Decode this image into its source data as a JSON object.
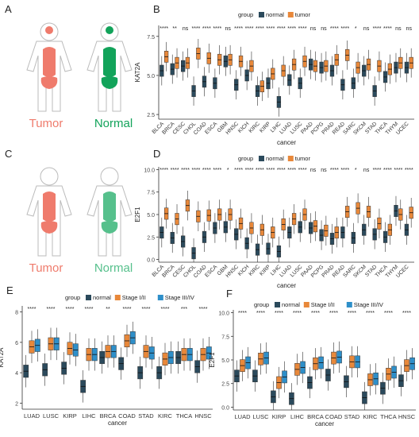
{
  "panels": {
    "A": {
      "letter": "A",
      "tumor_label": "Tumor",
      "normal_label": "Normal"
    },
    "C": {
      "letter": "C",
      "tumor_label": "Tumor",
      "normal_label": "Normal"
    }
  },
  "colors": {
    "normal": "#2b4a5c",
    "tumor": "#e8883a",
    "stage1": "#e8883a",
    "stage3": "#2e8fc9",
    "tumor_body": "#ef7b6c",
    "normal_body_A": "#12a35a",
    "normal_body_C": "#56c08c"
  },
  "chart_data": [
    {
      "panel": "B",
      "type": "box",
      "ylabel": "KAT2A",
      "xlabel": "cancer",
      "legend_title": "group",
      "legend": [
        "normal",
        "tumor"
      ],
      "ylim": [
        2.2,
        8.2
      ],
      "yticks": [
        2.5,
        5.0,
        7.5
      ],
      "categories": [
        "BLCA",
        "BRCA",
        "CESC",
        "CHOL",
        "COAD",
        "ESCA",
        "GBM",
        "HNSC",
        "KICH",
        "KIRC",
        "KIRP",
        "LIHC",
        "LUAD",
        "LUSC",
        "PAAD",
        "PCPG",
        "PRAD",
        "READ",
        "SARC",
        "SKCM",
        "STAD",
        "THCA",
        "THYM",
        "UCEC"
      ],
      "significance": [
        "****",
        "**",
        "ns",
        "****",
        "****",
        "****",
        "ns",
        "****",
        "****",
        "****",
        "****",
        "****",
        "****",
        "****",
        "ns",
        "ns",
        "****",
        "****",
        "*",
        "ns",
        "****",
        "****",
        "ns",
        "ns"
      ],
      "series": [
        {
          "name": "normal",
          "medians": [
            5.3,
            5.4,
            5.6,
            4.0,
            4.6,
            4.5,
            5.9,
            4.4,
            5.0,
            4.0,
            4.5,
            3.3,
            4.7,
            4.5,
            5.7,
            5.5,
            5.3,
            4.4,
            4.5,
            5.3,
            4.0,
            4.9,
            5.5,
            5.5
          ]
        },
        {
          "name": "tumor",
          "medians": [
            6.2,
            5.8,
            5.8,
            6.4,
            6.1,
            6.0,
            6.0,
            5.9,
            5.6,
            4.3,
            5.1,
            5.3,
            5.7,
            5.9,
            5.6,
            5.6,
            6.0,
            6.3,
            5.5,
            5.7,
            5.6,
            5.4,
            5.8,
            5.8
          ]
        }
      ]
    },
    {
      "panel": "D",
      "type": "box",
      "ylabel": "E2F1",
      "xlabel": "cancer",
      "legend_title": "group",
      "legend": [
        "normal",
        "tumor"
      ],
      "ylim": [
        -0.3,
        10.3
      ],
      "yticks": [
        0.0,
        2.5,
        5.0,
        7.5,
        10.0
      ],
      "categories": [
        "BLCA",
        "BRCA",
        "CESC",
        "CHOL",
        "COAD",
        "ESCA",
        "GBM",
        "HNSC",
        "KICH",
        "KIRC",
        "KIRP",
        "LIHC",
        "LUAD",
        "LUSC",
        "PAAD",
        "PCPG",
        "PRAD",
        "READ",
        "SARC",
        "SKCM",
        "STAD",
        "THCA",
        "THYM",
        "UCEC"
      ],
      "significance": [
        "****",
        "****",
        "****",
        "****",
        "****",
        "****",
        "*",
        "****",
        "****",
        "****",
        "****",
        "****",
        "****",
        "****",
        "ns",
        "ns",
        "****",
        "****",
        "*",
        "ns",
        "****",
        "****",
        "****",
        "****"
      ],
      "series": [
        {
          "name": "normal",
          "medians": [
            3.0,
            2.4,
            2.0,
            0.7,
            2.5,
            3.5,
            3.6,
            2.8,
            1.8,
            1.1,
            1.2,
            0.9,
            3.0,
            3.6,
            3.5,
            2.7,
            2.3,
            3.0,
            2.4,
            3.3,
            2.8,
            2.5,
            5.4,
            3.3
          ]
        },
        {
          "name": "tumor",
          "medians": [
            5.1,
            4.5,
            6.0,
            4.8,
            4.9,
            5.0,
            5.0,
            4.0,
            3.5,
            3.3,
            3.0,
            3.9,
            4.5,
            5.0,
            3.7,
            3.2,
            3.0,
            5.3,
            5.7,
            5.3,
            4.0,
            3.3,
            5.0,
            5.2
          ]
        }
      ]
    },
    {
      "panel": "E",
      "type": "box",
      "ylabel": "KAT2A",
      "xlabel": "cancer",
      "legend_title": "group",
      "legend": [
        "normal",
        "Stage I/II",
        "Stage III/IV"
      ],
      "ylim": [
        1.6,
        8.4
      ],
      "yticks": [
        2,
        4,
        6,
        8
      ],
      "categories": [
        "LUAD",
        "LUSC",
        "KIRP",
        "LIHC",
        "BRCA",
        "COAD",
        "STAD",
        "KIRC",
        "THCA",
        "HNSC"
      ],
      "significance": [
        "****",
        "****",
        "****",
        "****",
        "**",
        "****",
        "****",
        "****",
        "***",
        "****"
      ],
      "series": [
        {
          "name": "normal",
          "medians": [
            4.1,
            4.2,
            4.3,
            3.1,
            5.0,
            4.6,
            4.0,
            4.0,
            5.0,
            4.4
          ]
        },
        {
          "name": "Stage I/II",
          "medians": [
            5.7,
            5.9,
            5.6,
            5.2,
            5.4,
            6.1,
            5.4,
            4.9,
            5.2,
            5.2
          ]
        },
        {
          "name": "Stage III/IV",
          "medians": [
            5.8,
            5.9,
            5.5,
            5.2,
            5.4,
            6.3,
            5.3,
            5.0,
            5.2,
            5.3
          ]
        }
      ]
    },
    {
      "panel": "F",
      "type": "box",
      "ylabel": "E2F1",
      "xlabel": "cancer",
      "legend_title": "group",
      "legend": [
        "normal",
        "Stage I/II",
        "Stage III/IV"
      ],
      "ylim": [
        -0.3,
        10.3
      ],
      "yticks": [
        0.0,
        2.5,
        5.0,
        7.5,
        10.0
      ],
      "categories": [
        "LUAD",
        "LUSC",
        "KIRP",
        "LIHC",
        "BRCA",
        "COAD",
        "STAD",
        "KIRC",
        "THCA",
        "HNSC"
      ],
      "significance": [
        "****",
        "****",
        "****",
        "****",
        "****",
        "****",
        "****",
        "****",
        "****",
        "****"
      ],
      "series": [
        {
          "name": "normal",
          "medians": [
            3.3,
            3.3,
            1.1,
            0.9,
            2.6,
            3.4,
            2.7,
            1.0,
            2.0,
            2.8
          ]
        },
        {
          "name": "Stage I/II",
          "medians": [
            4.4,
            5.1,
            2.6,
            4.0,
            4.6,
            5.2,
            4.8,
            2.9,
            3.5,
            4.4
          ]
        },
        {
          "name": "Stage III/IV",
          "medians": [
            4.7,
            5.2,
            3.2,
            4.2,
            4.7,
            5.3,
            4.8,
            3.0,
            3.7,
            4.6
          ]
        }
      ]
    }
  ]
}
